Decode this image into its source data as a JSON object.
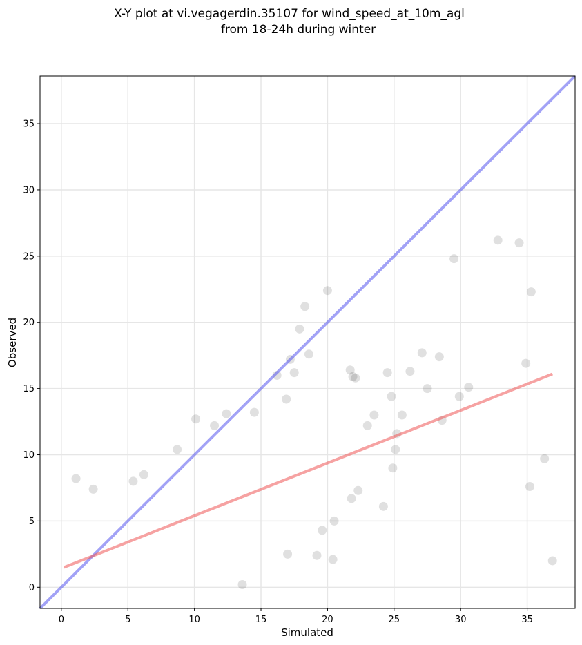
{
  "chart_data": {
    "type": "scatter",
    "title": [
      "X-Y plot at vi.vegagerdin.35107 for wind_speed_at_10m_agl",
      "from 18-24h during winter"
    ],
    "xlabel": "Simulated",
    "ylabel": "Observed",
    "xlim": [
      -1.6,
      38.6
    ],
    "ylim": [
      -1.6,
      38.6
    ],
    "xticks": [
      0,
      5,
      10,
      15,
      20,
      25,
      30,
      35
    ],
    "yticks": [
      0,
      5,
      10,
      15,
      20,
      25,
      30,
      35
    ],
    "grid": true,
    "colors": {
      "points": "#000000",
      "identity_line": "#5555ee",
      "regression_line": "#ee5555",
      "grid": "#e6e6e6"
    },
    "identity_line": {
      "x": [
        -1.6,
        38.6
      ],
      "y": [
        -1.6,
        38.6
      ]
    },
    "regression_line": {
      "x": [
        0.2,
        36.9
      ],
      "y": [
        1.5,
        16.1
      ]
    },
    "series": [
      {
        "values": [
          [
            29.5,
            24.8
          ],
          [
            32.8,
            26.2
          ],
          [
            34.4,
            26.0
          ],
          [
            35.3,
            22.3
          ],
          [
            34.9,
            16.9
          ],
          [
            36.3,
            9.7
          ],
          [
            35.2,
            7.6
          ],
          [
            36.9,
            2.0
          ],
          [
            30.6,
            15.1
          ],
          [
            29.9,
            14.4
          ],
          [
            28.4,
            17.4
          ],
          [
            27.1,
            17.7
          ],
          [
            27.5,
            15.0
          ],
          [
            26.2,
            16.3
          ],
          [
            28.6,
            12.6
          ],
          [
            25.6,
            13.0
          ],
          [
            25.2,
            11.6
          ],
          [
            24.5,
            16.2
          ],
          [
            24.8,
            14.4
          ],
          [
            25.1,
            10.4
          ],
          [
            24.9,
            9.0
          ],
          [
            24.2,
            6.1
          ],
          [
            23.5,
            13.0
          ],
          [
            23.0,
            12.2
          ],
          [
            21.7,
            16.4
          ],
          [
            21.9,
            15.9
          ],
          [
            22.1,
            15.8
          ],
          [
            20.0,
            22.4
          ],
          [
            18.3,
            21.2
          ],
          [
            17.9,
            19.5
          ],
          [
            18.6,
            17.6
          ],
          [
            17.2,
            17.2
          ],
          [
            17.5,
            16.2
          ],
          [
            16.9,
            14.2
          ],
          [
            16.2,
            16.0
          ],
          [
            14.5,
            13.2
          ],
          [
            20.5,
            5.0
          ],
          [
            20.4,
            2.1
          ],
          [
            19.2,
            2.4
          ],
          [
            19.6,
            4.3
          ],
          [
            22.3,
            7.3
          ],
          [
            21.8,
            6.7
          ],
          [
            2.4,
            7.4
          ],
          [
            1.1,
            8.2
          ],
          [
            10.1,
            12.7
          ],
          [
            11.5,
            12.2
          ],
          [
            12.4,
            13.1
          ],
          [
            8.7,
            10.4
          ],
          [
            6.2,
            8.5
          ],
          [
            5.4,
            8.0
          ],
          [
            13.6,
            0.2
          ],
          [
            17.0,
            2.5
          ]
        ]
      }
    ]
  }
}
